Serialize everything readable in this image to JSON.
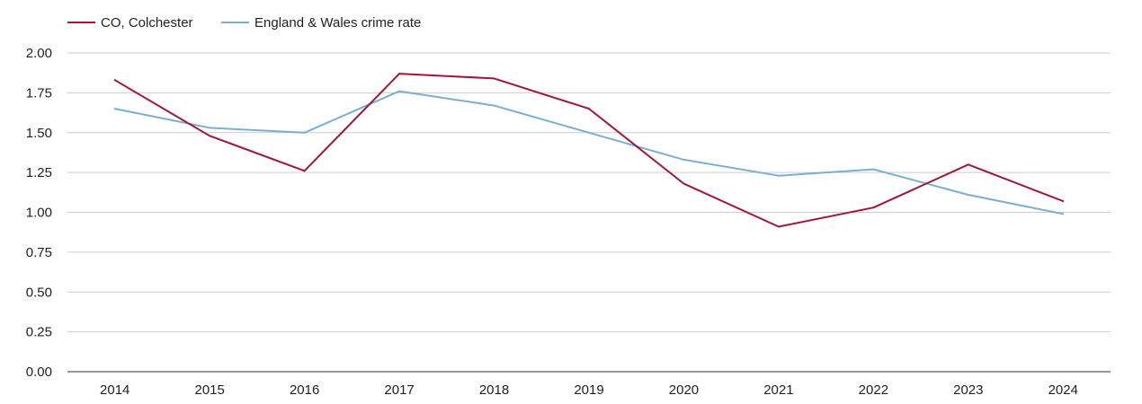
{
  "chart_data": {
    "type": "line",
    "title": "",
    "xlabel": "",
    "ylabel": "",
    "categories": [
      "2014",
      "2015",
      "2016",
      "2017",
      "2018",
      "2019",
      "2020",
      "2021",
      "2022",
      "2023",
      "2024"
    ],
    "ylim": [
      0,
      2
    ],
    "yticks": [
      "0.00",
      "0.25",
      "0.50",
      "0.75",
      "1.00",
      "1.25",
      "1.50",
      "1.75",
      "2.00"
    ],
    "grid": true,
    "legend_position": "top-left",
    "series": [
      {
        "name": "CO, Colchester",
        "color": "#a0163a",
        "values": [
          1.83,
          1.48,
          1.26,
          1.87,
          1.84,
          1.65,
          1.18,
          0.91,
          1.03,
          1.3,
          1.07
        ]
      },
      {
        "name": "England & Wales crime rate",
        "color": "#7aafcf",
        "values": [
          1.65,
          1.53,
          1.5,
          1.76,
          1.67,
          1.5,
          1.33,
          1.23,
          1.27,
          1.11,
          0.99
        ]
      }
    ]
  }
}
